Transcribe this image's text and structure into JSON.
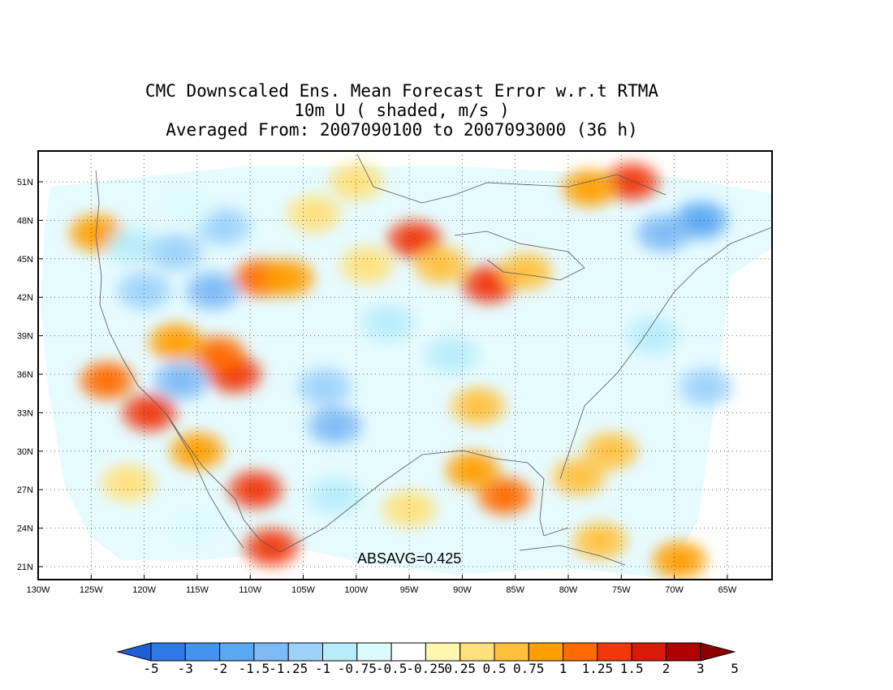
{
  "title": {
    "line1": "CMC Downscaled Ens. Mean Forecast Error w.r.t RTMA",
    "line2": "10m U ( shaded, m/s )",
    "line3": "Averaged From: 2007090100 to 2007093000 (36 h)"
  },
  "stat_label": "ABSAVG=0.425",
  "lat_labels": [
    "51N",
    "48N",
    "45N",
    "42N",
    "39N",
    "36N",
    "33N",
    "30N",
    "27N",
    "24N",
    "21N"
  ],
  "lon_labels": [
    "130W",
    "125W",
    "120W",
    "115W",
    "110W",
    "105W",
    "100W",
    "95W",
    "90W",
    "85W",
    "80W",
    "75W",
    "70W",
    "65W"
  ],
  "colorbar": {
    "labels": [
      "-5",
      "-3",
      "-2",
      "-1.5",
      "-1.25",
      "-1",
      "-0.75",
      "-0.5",
      "-0.25",
      "0.25",
      "0.5",
      "0.75",
      "1",
      "1.25",
      "1.5",
      "2",
      "3",
      "5"
    ],
    "colors": [
      "#1e5fd8",
      "#2f79e4",
      "#4493ee",
      "#5aa7f2",
      "#7dbaf6",
      "#9dd2fa",
      "#b8ecfb",
      "#dcfbfe",
      "#ffffff",
      "#fff6b0",
      "#ffe07a",
      "#ffc03c",
      "#ff9e00",
      "#ff6a00",
      "#f0380a",
      "#d81a0a",
      "#b00000",
      "#8a0000"
    ]
  },
  "colors": {
    "coast": "#555555",
    "grid": "#444444",
    "frame": "#000000"
  },
  "blobs": [
    {
      "lon": -124.5,
      "lat": 47.0,
      "cls": 12
    },
    {
      "lon": -121.0,
      "lat": 46.0,
      "cls": 6
    },
    {
      "lon": -117.0,
      "lat": 45.5,
      "cls": 5
    },
    {
      "lon": -112.5,
      "lat": 47.5,
      "cls": 5
    },
    {
      "lon": -116.0,
      "lat": 49.0,
      "cls": 7
    },
    {
      "lon": -113.5,
      "lat": 42.5,
      "cls": 4
    },
    {
      "lon": -120.0,
      "lat": 42.5,
      "cls": 5
    },
    {
      "lon": -109.0,
      "lat": 43.5,
      "cls": 13
    },
    {
      "lon": -106.5,
      "lat": 43.5,
      "cls": 12
    },
    {
      "lon": -111.5,
      "lat": 36.0,
      "cls": 14
    },
    {
      "lon": -113.0,
      "lat": 37.5,
      "cls": 13
    },
    {
      "lon": -117.0,
      "lat": 38.5,
      "cls": 12
    },
    {
      "lon": -123.5,
      "lat": 35.5,
      "cls": 13
    },
    {
      "lon": -119.5,
      "lat": 33.0,
      "cls": 14
    },
    {
      "lon": -116.5,
      "lat": 35.5,
      "cls": 4
    },
    {
      "lon": -115.0,
      "lat": 30.0,
      "cls": 12
    },
    {
      "lon": -109.5,
      "lat": 27.0,
      "cls": 14
    },
    {
      "lon": -108.0,
      "lat": 22.5,
      "cls": 14
    },
    {
      "lon": -103.0,
      "lat": 35.0,
      "cls": 5
    },
    {
      "lon": -102.0,
      "lat": 32.0,
      "cls": 4
    },
    {
      "lon": -94.5,
      "lat": 46.5,
      "cls": 14
    },
    {
      "lon": -92.0,
      "lat": 44.5,
      "cls": 11
    },
    {
      "lon": -99.0,
      "lat": 44.5,
      "cls": 10
    },
    {
      "lon": -87.5,
      "lat": 43.0,
      "cls": 14
    },
    {
      "lon": -84.0,
      "lat": 44.0,
      "cls": 11
    },
    {
      "lon": -97.0,
      "lat": 40.0,
      "cls": 6
    },
    {
      "lon": -91.0,
      "lat": 37.5,
      "cls": 6
    },
    {
      "lon": -88.5,
      "lat": 33.5,
      "cls": 11
    },
    {
      "lon": -86.0,
      "lat": 26.5,
      "cls": 13
    },
    {
      "lon": -89.0,
      "lat": 28.5,
      "cls": 12
    },
    {
      "lon": -76.0,
      "lat": 30.0,
      "cls": 11
    },
    {
      "lon": -79.0,
      "lat": 28.0,
      "cls": 11
    },
    {
      "lon": -74.0,
      "lat": 51.0,
      "cls": 14
    },
    {
      "lon": -78.0,
      "lat": 50.5,
      "cls": 12
    },
    {
      "lon": -67.5,
      "lat": 48.0,
      "cls": 3
    },
    {
      "lon": -71.0,
      "lat": 47.0,
      "cls": 4
    },
    {
      "lon": -67.0,
      "lat": 35.0,
      "cls": 5
    },
    {
      "lon": -72.0,
      "lat": 39.0,
      "cls": 6
    },
    {
      "lon": -77.0,
      "lat": 23.0,
      "cls": 11
    },
    {
      "lon": -69.5,
      "lat": 21.5,
      "cls": 12
    },
    {
      "lon": -95.0,
      "lat": 25.5,
      "cls": 10
    },
    {
      "lon": -102.0,
      "lat": 26.5,
      "cls": 6
    },
    {
      "lon": -121.5,
      "lat": 27.5,
      "cls": 10
    },
    {
      "lon": -115.0,
      "lat": 24.0,
      "cls": 7
    },
    {
      "lon": -104.0,
      "lat": 48.5,
      "cls": 10
    },
    {
      "lon": -100.0,
      "lat": 51.0,
      "cls": 10
    }
  ]
}
